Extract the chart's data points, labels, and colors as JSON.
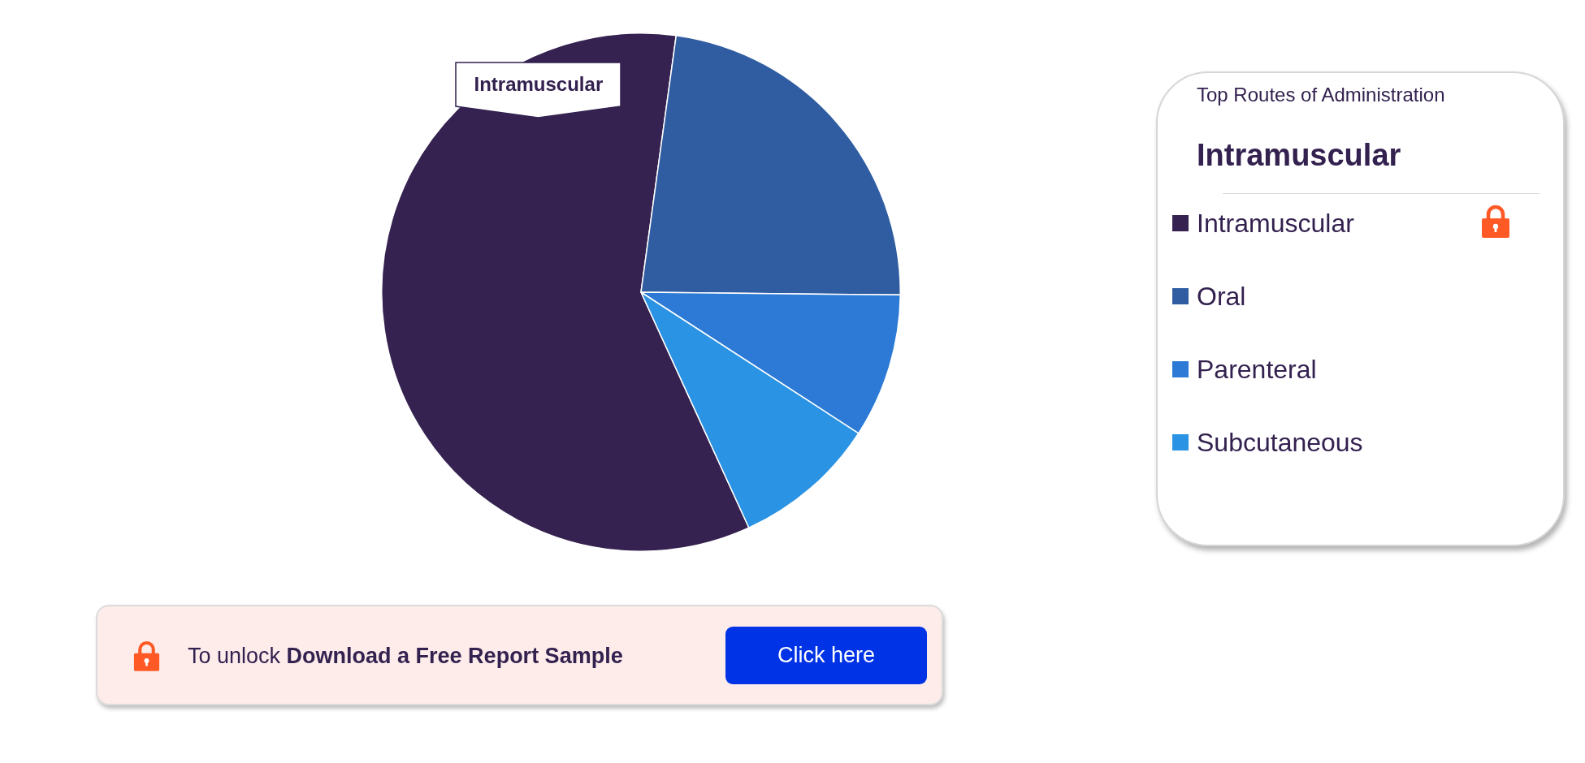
{
  "chart_data": {
    "type": "pie",
    "categories": [
      "Intramuscular",
      "Oral",
      "Parenteral",
      "Subcutaneous"
    ],
    "values": [
      59,
      23,
      9,
      9
    ],
    "colors": [
      "#352250",
      "#305da1",
      "#2c7ad5",
      "#2b93e3"
    ],
    "legend": "right",
    "legend_title": "Top Routes of Administration",
    "annotations": [
      {
        "text": "Intramuscular",
        "x": "Intramuscular"
      },
      "Intramuscular",
      "To unlock",
      "Download a Free Report Sample",
      "Click here"
    ]
  }
}
